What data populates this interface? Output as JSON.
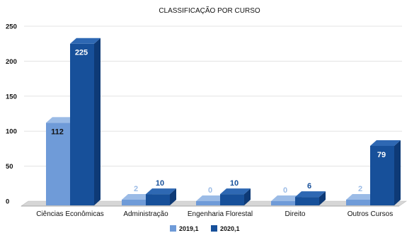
{
  "chart_data": {
    "type": "bar",
    "title": "CLASSIFICAÇÃO POR CURSO",
    "categories": [
      "Ciências Econômicas",
      "Administração",
      "Engenharia Florestal",
      "Direito",
      "Outros Cursos"
    ],
    "series": [
      {
        "name": "2019,1",
        "values": [
          112,
          2,
          0,
          0,
          2
        ],
        "color": "#6f9bd8",
        "side_color": "#5a86c4",
        "top_color": "#9bbbe6",
        "label_color": "#111111",
        "small_label_color": "#9bbbe6"
      },
      {
        "name": "2020,1",
        "values": [
          225,
          10,
          10,
          6,
          79
        ],
        "color": "#17509a",
        "side_color": "#0e3a76",
        "top_color": "#2e68b3",
        "label_color": "#ffffff",
        "small_label_color": "#17509a"
      }
    ],
    "ylim": [
      0,
      250
    ],
    "yticks": [
      "0",
      "50",
      "100",
      "150",
      "200",
      "250"
    ],
    "grid": true,
    "legend_position": "bottom-center",
    "xlabel": "",
    "ylabel": ""
  }
}
